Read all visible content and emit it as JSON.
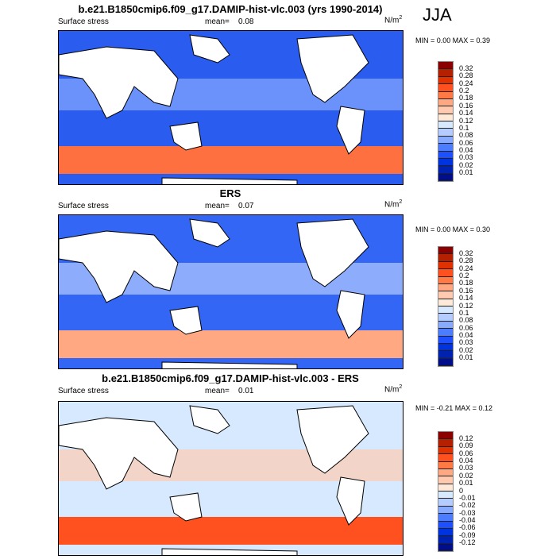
{
  "season": "JJA",
  "units": "N/m",
  "units_sup": "2",
  "colors": [
    "#8b0000",
    "#b52000",
    "#e03200",
    "#ff5020",
    "#ff7a45",
    "#ffa882",
    "#ffcab0",
    "#ffe9d8",
    "#d6e9ff",
    "#b4ccff",
    "#88aaff",
    "#4c7cff",
    "#1e50ff",
    "#0033e0",
    "#0022b0",
    "#000e8a"
  ],
  "panels": [
    {
      "title": "b.e21.B1850cmip6.f09_g17.DAMIP-hist-vlc.003 (yrs 1990-2014)",
      "variable": "Surface stress",
      "mean_label": "mean=",
      "mean": "0.08",
      "minmax": "MIN =   0.00 MAX =   0.39",
      "levels": [
        "0.32",
        "0.28",
        "0.24",
        "0.2",
        "0.18",
        "0.16",
        "0.14",
        "0.12",
        "0.1",
        "0.08",
        "0.06",
        "0.04",
        "0.03",
        "0.02",
        "0.01"
      ]
    },
    {
      "title": "ERS",
      "variable": "Surface stress",
      "mean_label": "mean=",
      "mean": "0.07",
      "minmax": "MIN =   0.00 MAX =   0.30",
      "levels": [
        "0.32",
        "0.28",
        "0.24",
        "0.2",
        "0.18",
        "0.16",
        "0.14",
        "0.12",
        "0.1",
        "0.08",
        "0.06",
        "0.04",
        "0.03",
        "0.02",
        "0.01"
      ]
    },
    {
      "title": "b.e21.B1850cmip6.f09_g17.DAMIP-hist-vlc.003 - ERS",
      "variable": "Surface stress",
      "mean_label": "mean=",
      "mean": "0.01",
      "minmax": "MIN =  -0.21 MAX =   0.12",
      "levels": [
        "0.12",
        "0.09",
        "0.06",
        "0.04",
        "0.03",
        "0.02",
        "0.01",
        "0",
        "-0.01",
        "-0.02",
        "-0.03",
        "-0.04",
        "-0.06",
        "-0.09",
        "-0.12"
      ]
    }
  ]
}
